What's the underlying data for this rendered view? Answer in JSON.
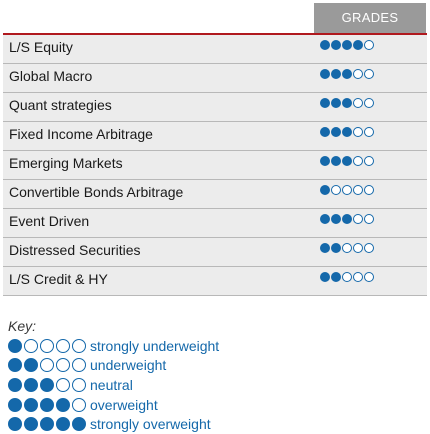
{
  "header": {
    "grades_label": "GRADES"
  },
  "colors": {
    "accent": "#1468aa",
    "rule": "#b0191e",
    "header_bg": "#9a9a9a",
    "row_bg": "#ececec"
  },
  "max_grade": 5,
  "rows": [
    {
      "strategy": "L/S Equity",
      "grade": 4
    },
    {
      "strategy": "Global Macro",
      "grade": 3
    },
    {
      "strategy": "Quant strategies",
      "grade": 3
    },
    {
      "strategy": "Fixed Income Arbitrage",
      "grade": 3
    },
    {
      "strategy": "Emerging Markets",
      "grade": 3
    },
    {
      "strategy": "Convertible Bonds Arbitrage",
      "grade": 1
    },
    {
      "strategy": "Event Driven",
      "grade": 3
    },
    {
      "strategy": "Distressed Securities",
      "grade": 2
    },
    {
      "strategy": "L/S Credit & HY",
      "grade": 2
    }
  ],
  "key": {
    "title": "Key:",
    "items": [
      {
        "grade": 1,
        "label": "strongly underweight"
      },
      {
        "grade": 2,
        "label": "underweight"
      },
      {
        "grade": 3,
        "label": "neutral"
      },
      {
        "grade": 4,
        "label": "overweight"
      },
      {
        "grade": 5,
        "label": "strongly overweight"
      }
    ]
  }
}
